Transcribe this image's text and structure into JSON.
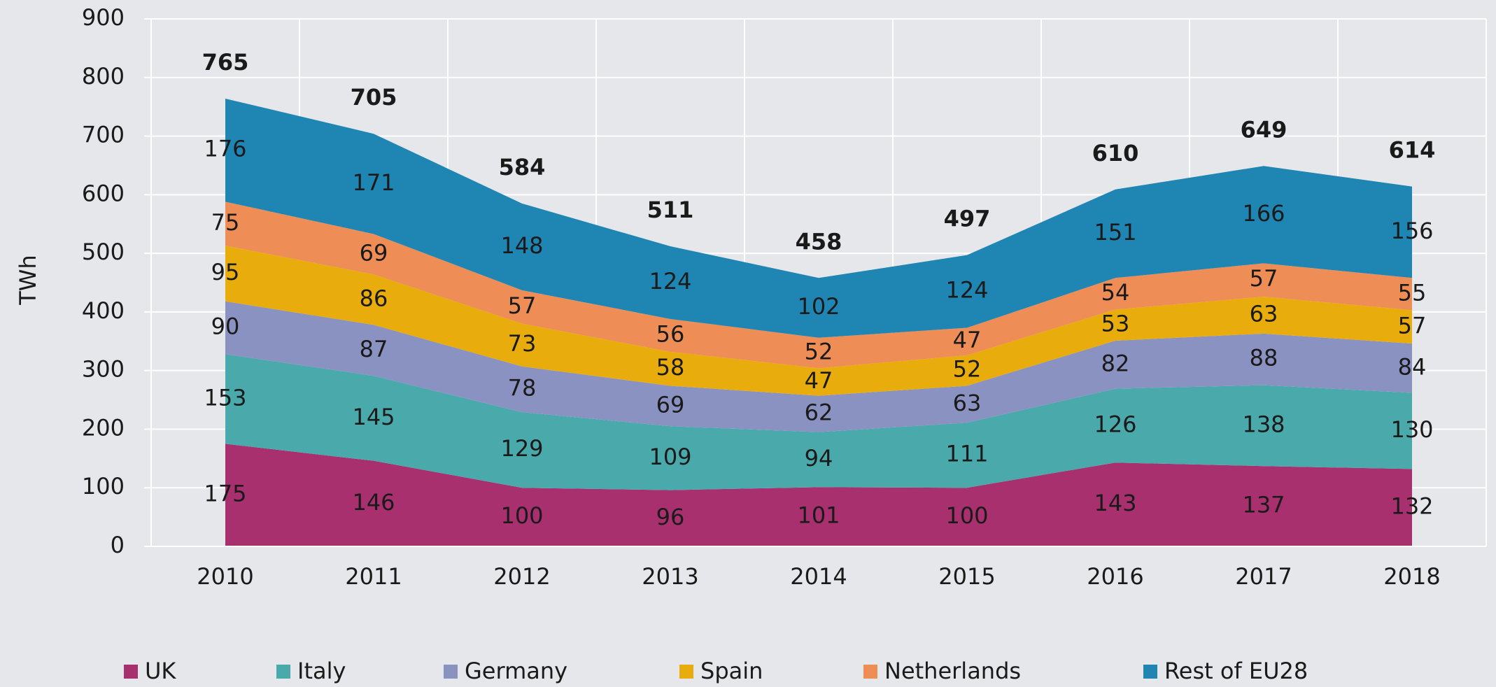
{
  "chart_data": {
    "type": "stacked_area",
    "y_label": "TWh",
    "categories": [
      "2010",
      "2011",
      "2012",
      "2013",
      "2014",
      "2015",
      "2016",
      "2017",
      "2018"
    ],
    "series": [
      {
        "name": "UK",
        "color": "#a8306e",
        "values": [
          175,
          146,
          100,
          96,
          101,
          100,
          143,
          137,
          132
        ]
      },
      {
        "name": "Italy",
        "color": "#4aa9aa",
        "values": [
          153,
          145,
          129,
          109,
          94,
          111,
          126,
          138,
          130
        ]
      },
      {
        "name": "Germany",
        "color": "#8a92c2",
        "values": [
          90,
          87,
          78,
          69,
          62,
          63,
          82,
          88,
          84
        ]
      },
      {
        "name": "Spain",
        "color": "#e8ad0c",
        "values": [
          95,
          86,
          73,
          58,
          47,
          52,
          53,
          63,
          57
        ]
      },
      {
        "name": "Netherlands",
        "color": "#ee8e56",
        "values": [
          75,
          69,
          57,
          56,
          52,
          47,
          54,
          57,
          55
        ]
      },
      {
        "name": "Rest of EU28",
        "color": "#1f86b4",
        "values": [
          176,
          171,
          148,
          124,
          102,
          124,
          151,
          166,
          156
        ]
      }
    ],
    "totals": [
      765,
      705,
      584,
      511,
      458,
      497,
      610,
      649,
      614
    ],
    "ylim": [
      0,
      900
    ],
    "yticks": [
      0,
      100,
      200,
      300,
      400,
      500,
      600,
      700,
      800,
      900
    ],
    "grid": true
  }
}
